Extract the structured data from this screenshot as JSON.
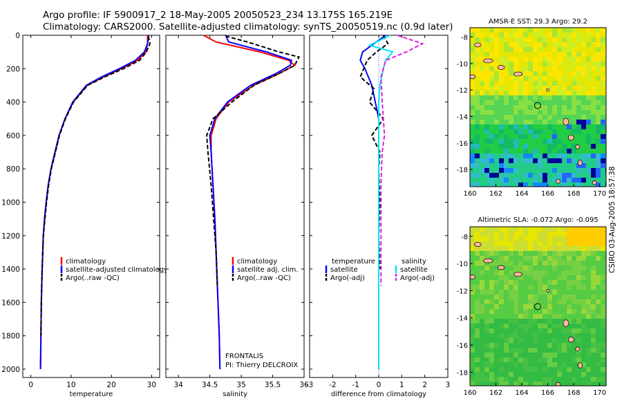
{
  "header": {
    "line1": "Argo profile: IF 5900917_2 18-May-2005 20050523_234 13.175S 165.219E",
    "line2": "Climatology: CARS2000. Satellite-adjusted climatology: synTS_20050519.nc (0.9d later)"
  },
  "stamp": "CSIRO 03-Aug-2005 18:57:38",
  "credits": {
    "project": "FRONTALIS",
    "pi": "PI: Thierry DELCROIX"
  },
  "colors": {
    "climatology": "#ff0000",
    "satellite": "#0000ff",
    "argo": "#000000",
    "satellite_sal": "#00e5ee",
    "argo_sal_adj": "#e020e0"
  },
  "chart_data": [
    {
      "type": "line",
      "xlabel": "temperature",
      "ylabel": "",
      "xlim": [
        -2,
        32
      ],
      "ylim": [
        2050,
        0
      ],
      "xticks": [
        0,
        10,
        20,
        30
      ],
      "yticks": [
        0,
        200,
        400,
        600,
        800,
        1000,
        1200,
        1400,
        1600,
        1800,
        2000
      ],
      "legend": [
        "climatology",
        "satellite-adjusted climatology",
        "Argo(..raw -QC)"
      ],
      "series": [
        {
          "name": "climatology",
          "color": "#ff0000",
          "dash": "none",
          "x": [
            29.0,
            29.0,
            28.6,
            26.5,
            22.5,
            18.0,
            14.0,
            10.5,
            8.5,
            7.0,
            6.0,
            5.0,
            4.3,
            3.8,
            3.4,
            3.1,
            2.8,
            2.6,
            2.5,
            2.4
          ],
          "y": [
            0,
            50,
            100,
            150,
            200,
            250,
            300,
            400,
            500,
            600,
            700,
            800,
            900,
            1000,
            1100,
            1200,
            1400,
            1600,
            1800,
            2000
          ]
        },
        {
          "name": "satellite-adjusted climatology",
          "color": "#0000ff",
          "dash": "none",
          "x": [
            29.3,
            29.0,
            28.2,
            26.0,
            22.0,
            17.5,
            13.8,
            10.4,
            8.5,
            7.0,
            6.0,
            5.0,
            4.3,
            3.8,
            3.4,
            3.1,
            2.8,
            2.6,
            2.5,
            2.4
          ],
          "y": [
            0,
            50,
            100,
            150,
            200,
            250,
            300,
            400,
            500,
            600,
            700,
            800,
            900,
            1000,
            1100,
            1200,
            1400,
            1600,
            1800,
            2000
          ]
        },
        {
          "name": "Argo(..raw -QC)",
          "color": "#000000",
          "dash": "6,3",
          "x": [
            29.2,
            29.6,
            28.7,
            27.0,
            23.0,
            18.3,
            14.1,
            10.6,
            8.6,
            7.1,
            6.1,
            5.1,
            4.4,
            3.9,
            3.5,
            3.1,
            2.8,
            2.6,
            2.5
          ],
          "y": [
            5,
            50,
            100,
            150,
            200,
            250,
            300,
            400,
            500,
            600,
            700,
            800,
            900,
            1000,
            1100,
            1200,
            1400,
            1600,
            1800
          ]
        }
      ]
    },
    {
      "type": "line",
      "xlabel": "salinity",
      "ylabel": "",
      "xlim": [
        33.8,
        36.0
      ],
      "ylim": [
        2050,
        0
      ],
      "xticks": [
        34,
        34.5,
        35,
        35.5,
        36
      ],
      "yticks": [
        0,
        200,
        400,
        600,
        800,
        1000,
        1200,
        1400,
        1600,
        1800,
        2000
      ],
      "legend": [
        "climatology",
        "satellite adj. clim.",
        "Argo(..raw -QC)"
      ],
      "series": [
        {
          "name": "climatology",
          "color": "#ff0000",
          "dash": "none",
          "x": [
            34.4,
            34.6,
            35.3,
            35.75,
            35.85,
            35.6,
            35.2,
            34.8,
            34.6,
            34.52,
            34.52,
            34.55,
            34.58,
            34.6,
            34.62,
            34.65,
            34.66
          ],
          "y": [
            0,
            40,
            100,
            150,
            180,
            230,
            300,
            400,
            500,
            600,
            700,
            900,
            1100,
            1300,
            1500,
            1800,
            2000
          ]
        },
        {
          "name": "satellite adj. clim.",
          "color": "#0000ff",
          "dash": "none",
          "x": [
            34.75,
            34.8,
            35.4,
            35.8,
            35.78,
            35.55,
            35.15,
            34.78,
            34.58,
            34.5,
            34.52,
            34.55,
            34.58,
            34.6,
            34.62,
            34.65,
            34.66
          ],
          "y": [
            0,
            40,
            100,
            150,
            180,
            230,
            300,
            400,
            500,
            600,
            700,
            900,
            1100,
            1300,
            1500,
            1800,
            2000
          ]
        },
        {
          "name": "Argo(..raw -QC)",
          "color": "#000000",
          "dash": "6,3",
          "x": [
            34.75,
            35.1,
            35.6,
            35.92,
            35.85,
            35.6,
            35.2,
            34.85,
            34.55,
            34.45,
            34.47,
            34.52,
            34.56,
            34.6,
            34.62
          ],
          "y": [
            5,
            40,
            100,
            130,
            180,
            230,
            300,
            400,
            500,
            600,
            700,
            900,
            1100,
            1300,
            1500
          ]
        }
      ]
    },
    {
      "type": "line",
      "xlabel": "difference from climatology",
      "ylabel": "",
      "xlim": [
        -3,
        3
      ],
      "ylim": [
        2050,
        0
      ],
      "xticks": [
        -3,
        -2,
        -1,
        0,
        1,
        2,
        3
      ],
      "yticks": [
        0,
        200,
        400,
        600,
        800,
        1000,
        1200,
        1400,
        1600,
        1800,
        2000
      ],
      "legend": [
        "temperature",
        "satellite",
        "Argo(-adj)",
        "salinity",
        "satellite",
        "Argo(-adj)"
      ],
      "series": [
        {
          "name": "satellite",
          "color": "#0000ff",
          "dash": "none",
          "x": [
            0.3,
            -0.2,
            -0.7,
            -0.8,
            -0.6,
            -0.3,
            -0.15,
            0,
            0,
            0,
            0,
            0,
            0,
            0,
            0,
            0
          ],
          "y": [
            0,
            50,
            100,
            150,
            200,
            300,
            400,
            500,
            600,
            800,
            1000,
            1200,
            1400,
            1600,
            1800,
            2000
          ]
        },
        {
          "name": "Argo(-adj)",
          "color": "#000000",
          "dash": "6,3",
          "x": [
            0.2,
            0.4,
            -0.1,
            -0.5,
            -0.8,
            -0.2,
            -0.4,
            0.2,
            -0.3,
            0.05,
            0,
            0.05,
            0,
            0.05
          ],
          "y": [
            0,
            50,
            100,
            150,
            250,
            320,
            400,
            500,
            600,
            700,
            800,
            1000,
            1200,
            1400
          ]
        },
        {
          "name": "satellite",
          "color": "#00e5ee",
          "dash": "none",
          "x": [
            0.5,
            -0.4,
            0.6,
            0.3,
            0.2,
            0.05,
            0,
            0,
            0,
            0,
            0,
            0,
            0,
            0,
            0,
            0
          ],
          "y": [
            0,
            60,
            100,
            150,
            200,
            300,
            400,
            500,
            600,
            800,
            1000,
            1200,
            1400,
            1600,
            1800,
            2000
          ]
        },
        {
          "name": "Argo(-adj)",
          "color": "#e020e0",
          "dash": "6,3",
          "x": [
            0.8,
            1.9,
            1.2,
            0.3,
            0.1,
            0.15,
            0.2,
            0.25,
            0.15,
            0.1,
            0.1,
            0.1,
            0.1
          ],
          "y": [
            0,
            50,
            100,
            150,
            250,
            400,
            500,
            600,
            700,
            900,
            1100,
            1300,
            1500
          ]
        }
      ]
    },
    {
      "type": "heatmap",
      "title": "AMSR-E SST: 29.3 Argo: 29.2",
      "xlim": [
        160,
        170.5
      ],
      "ylim": [
        -19.3,
        -7.3
      ],
      "xticks": [
        160,
        162,
        164,
        166,
        168,
        170
      ],
      "yticks": [
        -8,
        -10,
        -12,
        -14,
        -16,
        -18
      ],
      "marker": {
        "lon": 165.219,
        "lat": -13.175
      }
    },
    {
      "type": "heatmap",
      "title": "Altimetric SLA: -0.072 Argo: -0.095",
      "xlim": [
        160,
        170.5
      ],
      "ylim": [
        -19.0,
        -7.3
      ],
      "xticks": [
        160,
        162,
        164,
        166,
        168,
        170
      ],
      "yticks": [
        -8,
        -10,
        -12,
        -14,
        -16,
        -18
      ],
      "marker": {
        "lon": 165.219,
        "lat": -13.175
      }
    }
  ]
}
